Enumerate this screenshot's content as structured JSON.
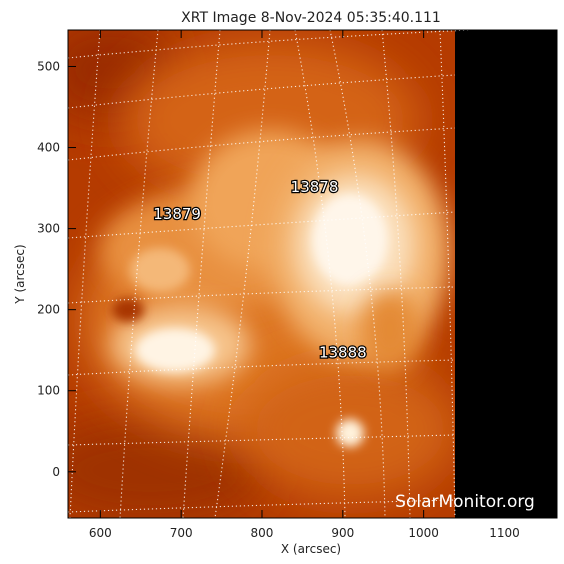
{
  "title": "XRT Image  8-Nov-2024 05:35:40.111",
  "x_axis": {
    "label": "X (arcsec)",
    "range": [
      560,
      1165
    ],
    "ticks": [
      600,
      700,
      800,
      900,
      1000,
      1100
    ],
    "tick_labels": [
      "600",
      "700",
      "800",
      "900",
      "1000",
      "1100"
    ]
  },
  "y_axis": {
    "label": "Y (arcsec)",
    "range": [
      -57,
      545
    ],
    "ticks": [
      0,
      100,
      200,
      300,
      400,
      500
    ],
    "tick_labels": [
      "0",
      "100",
      "200",
      "300",
      "400",
      "500"
    ]
  },
  "active_regions": [
    {
      "label": "13879",
      "x": 695,
      "y": 312
    },
    {
      "label": "13878",
      "x": 865,
      "y": 345
    },
    {
      "label": "13888",
      "x": 900,
      "y": 141
    }
  ],
  "watermark": "SolarMonitor.org",
  "colors": {
    "background": "#b53b00",
    "bright": "#fff6ea",
    "offdisk": "#000000",
    "grid": "#ffffff"
  }
}
